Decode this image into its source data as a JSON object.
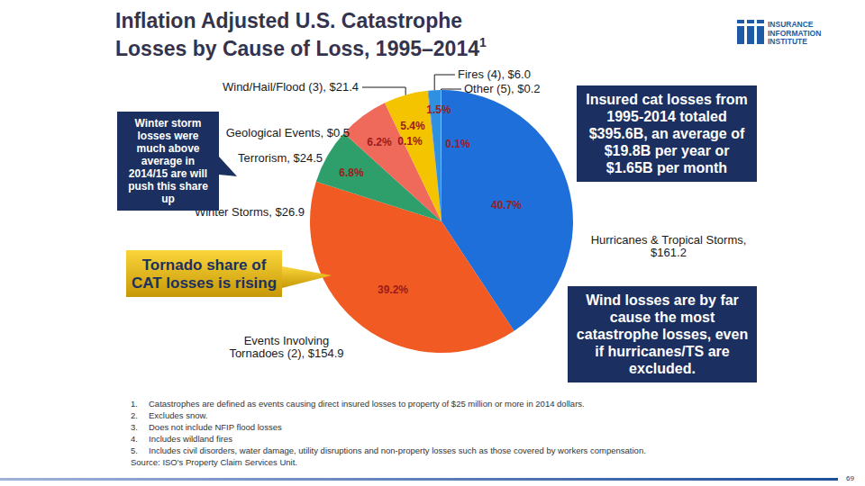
{
  "title": [
    "Inflation Adjusted U.S. Catastrophe",
    "Losses by Cause of Loss, 1995–2014"
  ],
  "title_note": "1",
  "logo": [
    "INSURANCE",
    "INFORMATION",
    "INSTITUTE"
  ],
  "chart_data": {
    "type": "pie",
    "categories": [
      "Hurricanes & Tropical Storms, $161.2",
      "Events Involving Tornadoes (2), $154.9",
      "Winter Storms, $26.9",
      "Terrorism, $24.5",
      "Wind/Hail/Flood (3), $21.4",
      "Geological Events, $0.5",
      "Fires (4), $6.0",
      "Other (5), $0.2"
    ],
    "values": [
      40.7,
      39.2,
      6.8,
      6.2,
      5.4,
      0.1,
      1.5,
      0.1
    ],
    "value_labels": [
      "40.7%",
      "39.2%",
      "6.8%",
      "6.2%",
      "5.4%",
      "0.1%",
      "1.5%",
      "0.1%"
    ],
    "colors": [
      "#1e6fd9",
      "#f15a22",
      "#2e9e6b",
      "#ef6a5a",
      "#f5c400",
      "#8c8c8c",
      "#2f8fe0",
      "#a6a6a6"
    ],
    "data_labels": true
  },
  "annotations": [
    "Winter storm losses were much above average in 2014/15 are will push this share up",
    "Tornado share of CAT losses is rising",
    "Insured cat losses from 1995-2014 totaled $395.6B, an average of $19.8B per year or $1.65B per month",
    "Wind losses are by far cause the most catastrophe losses, even if hurricanes/TS are excluded."
  ],
  "footnotes": [
    {
      "label": "1.",
      "text": "Catastrophes are defined as events causing direct insured losses to property of $25 million or more in 2014 dollars."
    },
    {
      "label": "2.",
      "text": "Excludes snow."
    },
    {
      "label": "3.",
      "text": "Does not include NFIP flood losses"
    },
    {
      "label": "4.",
      "text": "Includes wildland fires"
    },
    {
      "label": "5.",
      "text": "Includes civil disorders, water damage, utility disruptions and non-property losses such as those covered by workers compensation."
    }
  ],
  "source": "Source: ISO's Property Claim Services Unit.",
  "page_number": "69"
}
